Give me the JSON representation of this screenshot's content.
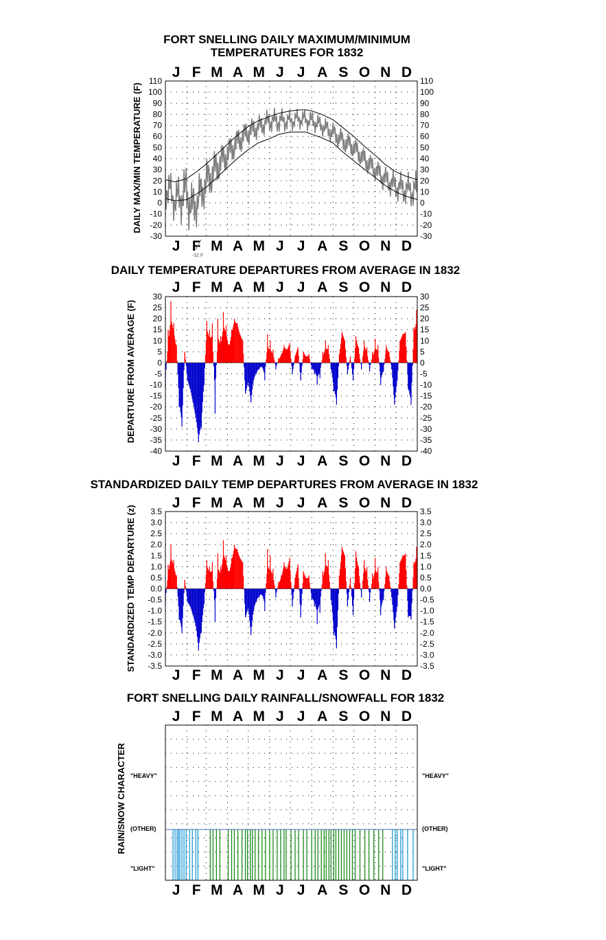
{
  "chart_data": [
    {
      "type": "line",
      "title": "FORT SNELLING DAILY MAXIMUM/MINIMUM",
      "subtitle": "TEMPERATURES FOR 1832",
      "xlabel": "",
      "ylabel": "DAILY MAX/MIN TEMPERATURE (F)",
      "months": [
        "J",
        "F",
        "M",
        "A",
        "M",
        "J",
        "J",
        "A",
        "S",
        "O",
        "N",
        "D"
      ],
      "ylim": [
        -30,
        110
      ],
      "yticks": [
        110,
        100,
        90,
        80,
        70,
        60,
        50,
        40,
        30,
        20,
        10,
        0,
        -10,
        -20,
        -30
      ],
      "grid": true,
      "annotation": "-32 F",
      "series": [
        {
          "name": "",
          "color": "#808080",
          "style": "daily max/min range",
          "days": [
            1,
            15,
            32,
            40,
            55,
            60,
            75,
            91,
            105,
            121,
            135,
            152,
            166,
            182,
            196,
            213,
            227,
            244,
            258,
            274,
            288,
            305,
            319,
            335,
            350,
            366
          ],
          "high": [
            38,
            22,
            40,
            20,
            35,
            42,
            52,
            60,
            70,
            78,
            80,
            86,
            86,
            84,
            86,
            84,
            80,
            74,
            68,
            62,
            52,
            42,
            35,
            30,
            28,
            30
          ],
          "low": [
            -6,
            -18,
            -22,
            -32,
            -12,
            -5,
            12,
            28,
            40,
            50,
            56,
            62,
            62,
            64,
            66,
            64,
            60,
            52,
            44,
            38,
            28,
            18,
            8,
            0,
            -4,
            -8
          ]
        },
        {
          "name": "",
          "color": "#000000",
          "style": "normal maximum",
          "days": [
            1,
            15,
            32,
            46,
            60,
            74,
            91,
            105,
            121,
            135,
            152,
            166,
            182,
            196,
            205,
            213,
            227,
            244,
            258,
            274,
            288,
            305,
            319,
            335,
            350,
            366
          ],
          "values": [
            21,
            19,
            22,
            28,
            35,
            43,
            53,
            61,
            69,
            74,
            78,
            81,
            83,
            84,
            84,
            83,
            80,
            75,
            68,
            60,
            52,
            43,
            35,
            28,
            24,
            21
          ]
        },
        {
          "name": "",
          "color": "#000000",
          "style": "normal minimum",
          "days": [
            1,
            15,
            32,
            46,
            60,
            74,
            91,
            105,
            121,
            135,
            152,
            166,
            182,
            196,
            205,
            213,
            227,
            244,
            258,
            274,
            288,
            305,
            319,
            335,
            350,
            366
          ],
          "values": [
            4,
            2,
            3,
            8,
            14,
            22,
            32,
            40,
            48,
            54,
            58,
            62,
            64,
            64,
            64,
            62,
            59,
            54,
            46,
            38,
            31,
            23,
            16,
            10,
            6,
            3
          ]
        }
      ]
    },
    {
      "type": "bar",
      "title": "DAILY TEMPERATURE DEPARTURES FROM AVERAGE IN 1832",
      "xlabel": "",
      "ylabel": "DEPARTURE FROM AVERAGE (F)",
      "months": [
        "J",
        "F",
        "M",
        "A",
        "M",
        "J",
        "J",
        "A",
        "S",
        "O",
        "N",
        "D"
      ],
      "ylim": [
        -40,
        30
      ],
      "yticks": [
        30,
        25,
        20,
        15,
        10,
        5,
        0,
        -5,
        -10,
        -15,
        -20,
        -25,
        -30,
        -35,
        -40
      ],
      "grid": true,
      "positive_color": "#ff0000",
      "negative_color": "#0000cc",
      "days": [
        1,
        5,
        9,
        13,
        17,
        21,
        25,
        29,
        33,
        37,
        41,
        45,
        49,
        53,
        57,
        61,
        65,
        69,
        73,
        77,
        81,
        85,
        89,
        93,
        97,
        101,
        105,
        109,
        113,
        117,
        121,
        125,
        129,
        133,
        137,
        141,
        145,
        149,
        153,
        157,
        161,
        165,
        169,
        173,
        177,
        181,
        185,
        189,
        193,
        197,
        201,
        205,
        209,
        213,
        217,
        221,
        225,
        229,
        233,
        237,
        241,
        245,
        249,
        253,
        257,
        261,
        265,
        269,
        273,
        277,
        281,
        285,
        289,
        293,
        297,
        301,
        305,
        309,
        313,
        317,
        321,
        325,
        329,
        333,
        337,
        341,
        345,
        349,
        353,
        357,
        361,
        365
      ],
      "values": [
        -12,
        15,
        28,
        18,
        8,
        -20,
        -29,
        5,
        -8,
        -12,
        -18,
        -25,
        -36,
        -30,
        -10,
        19,
        15,
        18,
        -23,
        20,
        12,
        23,
        17,
        8,
        15,
        20,
        18,
        13,
        10,
        -14,
        -9,
        -18,
        -8,
        -5,
        -3,
        -2,
        -8,
        13,
        10,
        6,
        -3,
        2,
        4,
        8,
        6,
        9,
        -5,
        3,
        7,
        -8,
        5,
        3,
        4,
        -3,
        -5,
        -10,
        -7,
        5,
        10,
        8,
        -3,
        -13,
        -19,
        4,
        14,
        10,
        -5,
        3,
        -8,
        12,
        7,
        -3,
        10,
        7,
        -4,
        5,
        11,
        8,
        -10,
        -4,
        8,
        5,
        -3,
        -19,
        -8,
        10,
        13,
        14,
        -12,
        -19,
        16,
        24
      ]
    },
    {
      "type": "bar",
      "title": "STANDARDIZED DAILY TEMP DEPARTURES FROM AVERAGE IN 1832",
      "xlabel": "",
      "ylabel": "STANDARDIZED TEMP DEPARTURE (z)",
      "months": [
        "J",
        "F",
        "M",
        "A",
        "M",
        "J",
        "J",
        "A",
        "S",
        "O",
        "N",
        "D"
      ],
      "ylim": [
        -3.5,
        3.5
      ],
      "yticks": [
        "3.5",
        "3.0",
        "2.5",
        "2.0",
        "1.5",
        "1.0",
        "0.5",
        "0.0",
        "-0.5",
        "-1.0",
        "-1.5",
        "-2.0",
        "-2.5",
        "-3.0",
        "-3.5"
      ],
      "grid": true,
      "positive_color": "#ff0000",
      "negative_color": "#0000cc",
      "days": [
        1,
        5,
        9,
        13,
        17,
        21,
        25,
        29,
        33,
        37,
        41,
        45,
        49,
        53,
        57,
        61,
        65,
        69,
        73,
        77,
        81,
        85,
        89,
        93,
        97,
        101,
        105,
        109,
        113,
        117,
        121,
        125,
        129,
        133,
        137,
        141,
        145,
        149,
        153,
        157,
        161,
        165,
        169,
        173,
        177,
        181,
        185,
        189,
        193,
        197,
        201,
        205,
        209,
        213,
        217,
        221,
        225,
        229,
        233,
        237,
        241,
        245,
        249,
        253,
        257,
        261,
        265,
        269,
        273,
        277,
        281,
        285,
        289,
        293,
        297,
        301,
        305,
        309,
        313,
        317,
        321,
        325,
        329,
        333,
        337,
        341,
        345,
        349,
        353,
        357,
        361,
        365
      ],
      "values": [
        -0.8,
        1.1,
        2.0,
        1.3,
        0.6,
        -1.4,
        -2.0,
        0.4,
        -0.6,
        -0.8,
        -1.2,
        -1.7,
        -2.8,
        -2.0,
        -0.7,
        1.3,
        1.0,
        1.2,
        -1.5,
        1.6,
        1.0,
        2.2,
        1.5,
        0.8,
        1.4,
        2.0,
        1.8,
        1.4,
        1.2,
        -1.3,
        -0.9,
        -2.1,
        -1.0,
        -0.6,
        -0.4,
        -0.3,
        -1.0,
        1.8,
        1.5,
        0.9,
        -0.4,
        0.3,
        0.6,
        1.2,
        0.9,
        1.4,
        -0.8,
        0.5,
        1.1,
        -1.3,
        0.8,
        0.5,
        0.6,
        -0.5,
        -0.8,
        -1.6,
        -1.1,
        0.8,
        1.6,
        1.3,
        -0.5,
        -2.1,
        -2.7,
        0.6,
        1.9,
        1.5,
        -0.8,
        0.5,
        -1.2,
        1.7,
        1.0,
        -0.4,
        1.3,
        1.0,
        -0.6,
        0.7,
        1.4,
        1.0,
        -1.2,
        -0.5,
        1.0,
        0.6,
        -0.4,
        -1.8,
        -0.8,
        1.2,
        1.5,
        1.6,
        -1.3,
        -1.4,
        1.2,
        1.9
      ]
    },
    {
      "type": "bar",
      "title": "FORT SNELLING DAILY RAINFALL/SNOWFALL FOR 1832",
      "xlabel": "",
      "ylabel": "RAIN/SNOW CHARACTER",
      "months": [
        "J",
        "F",
        "M",
        "A",
        "M",
        "J",
        "J",
        "A",
        "S",
        "O",
        "N",
        "D"
      ],
      "category_labels": [
        "\"HEAVY\"",
        "(OTHER)",
        "\"LIGHT\""
      ],
      "grid": true,
      "snow_color": "#1f9ad6",
      "rain_color": "#1a8a1a",
      "snow_days": [
        12,
        15,
        18,
        20,
        22,
        25,
        28,
        31,
        36,
        40,
        45,
        48,
        330,
        334,
        337,
        342,
        345,
        352,
        360
      ],
      "rain_days": [
        66,
        70,
        75,
        80,
        92,
        97,
        101,
        106,
        112,
        117,
        120,
        124,
        127,
        131,
        136,
        141,
        146,
        152,
        157,
        163,
        168,
        173,
        176,
        183,
        189,
        194,
        201,
        206,
        213,
        218,
        222,
        227,
        231,
        234,
        238,
        241,
        245,
        248,
        252,
        256,
        260,
        264,
        268,
        272,
        276,
        283,
        290,
        296,
        303,
        310,
        316
      ]
    }
  ]
}
